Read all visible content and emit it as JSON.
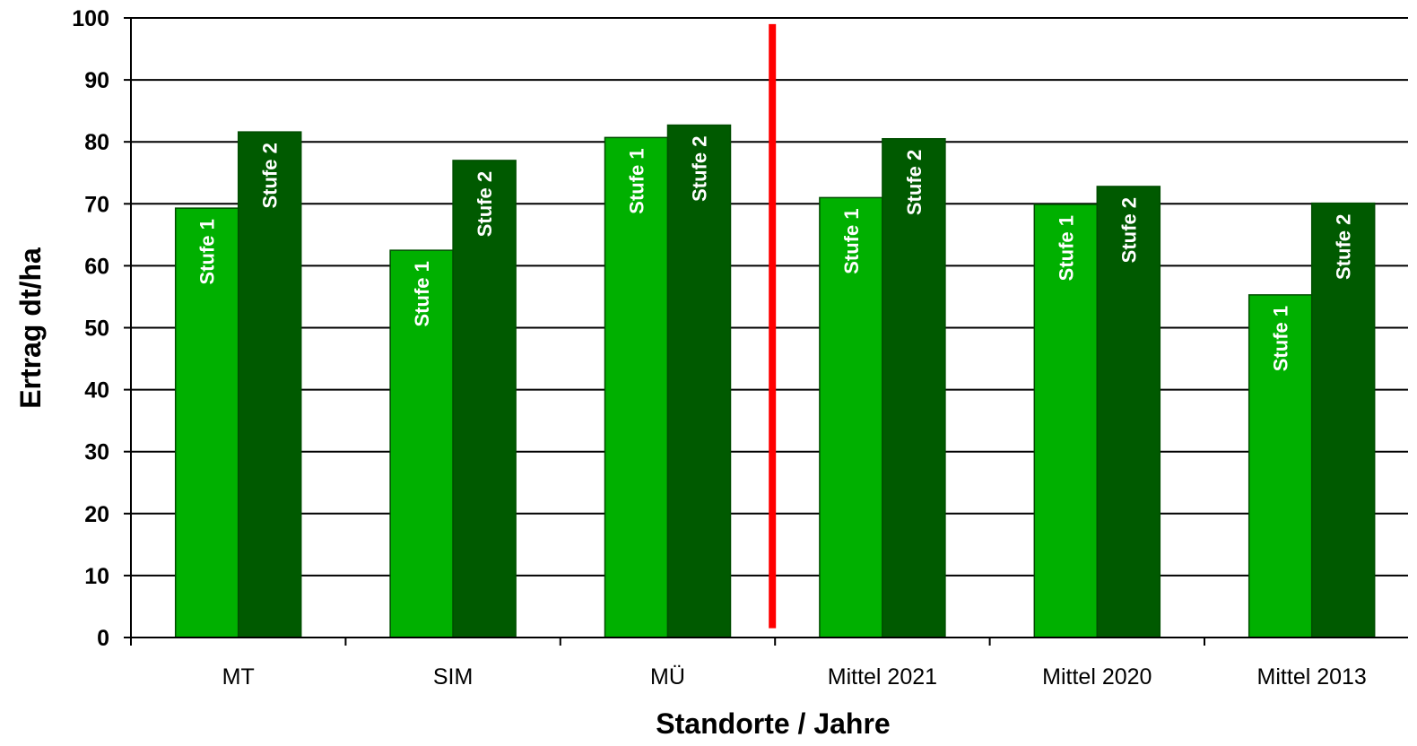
{
  "chart_data": {
    "type": "bar",
    "title": "",
    "xlabel": "Standorte / Jahre",
    "ylabel": "Ertrag dt/ha",
    "ylim": [
      0,
      100
    ],
    "yticks": [
      0,
      10,
      20,
      30,
      40,
      50,
      60,
      70,
      80,
      90,
      100
    ],
    "grid": true,
    "legend": "none",
    "categories": [
      "MT",
      "SIM",
      "MÜ",
      "Mittel 2021",
      "Mittel 2020",
      "Mittel 2013"
    ],
    "series": [
      {
        "name": "Stufe 1",
        "color": "#00b000",
        "values": [
          69.3,
          62.5,
          80.7,
          71.0,
          69.9,
          55.3
        ]
      },
      {
        "name": "Stufe 2",
        "color": "#005a00",
        "values": [
          81.6,
          77.0,
          82.7,
          80.5,
          72.8,
          70.1
        ]
      }
    ],
    "divider": {
      "after_category": "MÜ",
      "color": "#ff0000"
    }
  }
}
